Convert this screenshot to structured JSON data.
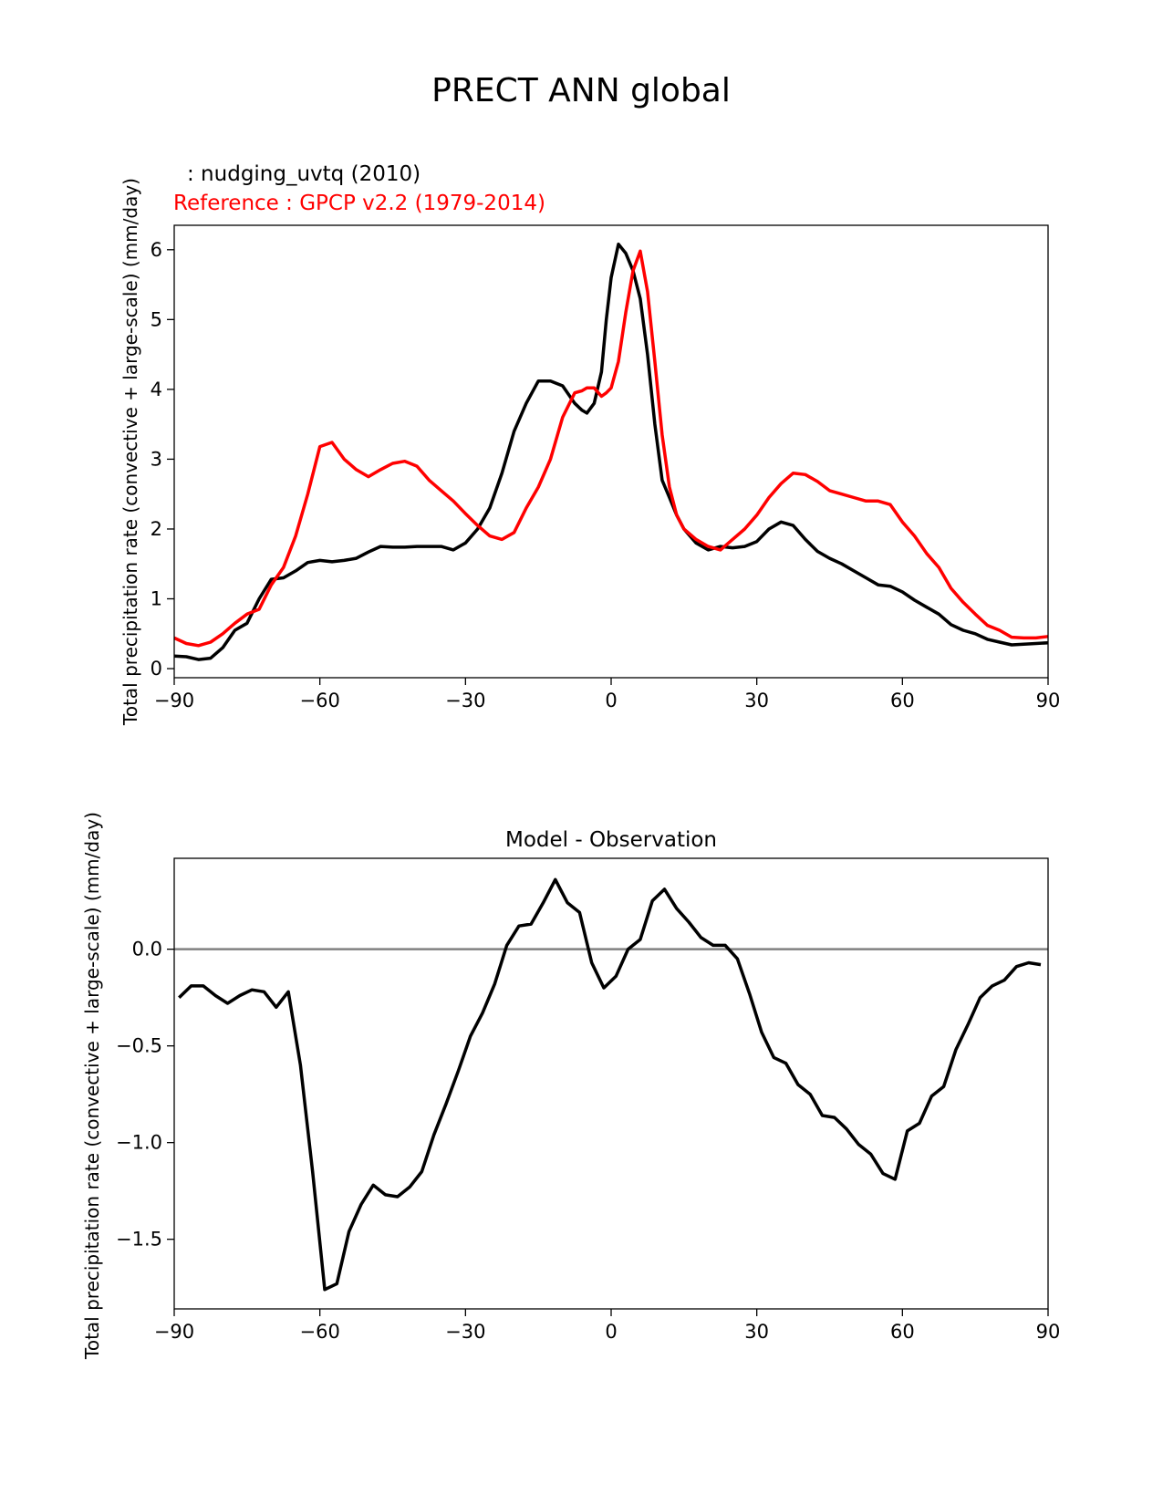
{
  "figure_title": "PRECT ANN global",
  "colors": {
    "model": "#000000",
    "reference": "#ff0000",
    "zero_line": "#808080"
  },
  "chart_data": [
    {
      "type": "line",
      "subtitle_model": " : nudging_uvtq (2010)",
      "subtitle_reference": "Reference : GPCP v2.2 (1979-2014)",
      "ylabel": "Total precipitation rate (convective + large-scale) (mm/day)",
      "xlabel": "",
      "xlim": [
        -90,
        90
      ],
      "ylim": [
        -0.13,
        6.35
      ],
      "xticks": [
        -90,
        -60,
        -30,
        0,
        30,
        60,
        90
      ],
      "xtick_labels": [
        "−90",
        "−60",
        "−30",
        "0",
        "30",
        "60",
        "90"
      ],
      "yticks": [
        0,
        1,
        2,
        3,
        4,
        5,
        6
      ],
      "ytick_labels": [
        "0",
        "1",
        "2",
        "3",
        "4",
        "5",
        "6"
      ],
      "series": [
        {
          "name": "nudging_uvtq (2010)",
          "color": "#000000",
          "x": [
            -90,
            -87.5,
            -85,
            -82.5,
            -80,
            -77.5,
            -75,
            -72.5,
            -70,
            -67.5,
            -65,
            -62.5,
            -60,
            -57.5,
            -55,
            -52.5,
            -50,
            -47.5,
            -45,
            -42.5,
            -40,
            -37.5,
            -35,
            -32.5,
            -30,
            -27.5,
            -25,
            -22.5,
            -20,
            -17.5,
            -15,
            -12.5,
            -10,
            -7.5,
            -6,
            -5,
            -3.5,
            -2,
            -1,
            0,
            1.5,
            3,
            4.5,
            6,
            7.5,
            9,
            10.5,
            12,
            13.5,
            15,
            17.5,
            20,
            22.5,
            25,
            27.5,
            30,
            32.5,
            35,
            37.5,
            40,
            42.5,
            45,
            47.5,
            50,
            52.5,
            55,
            57.5,
            60,
            62.5,
            65,
            67.5,
            70,
            72.5,
            75,
            77.5,
            80,
            82.5,
            85,
            87.5,
            90
          ],
          "values": [
            0.18,
            0.17,
            0.13,
            0.15,
            0.3,
            0.55,
            0.65,
            1.0,
            1.28,
            1.3,
            1.4,
            1.52,
            1.55,
            1.53,
            1.55,
            1.58,
            1.67,
            1.75,
            1.74,
            1.74,
            1.75,
            1.75,
            1.75,
            1.7,
            1.8,
            2.0,
            2.3,
            2.8,
            3.4,
            3.8,
            4.12,
            4.12,
            4.05,
            3.8,
            3.7,
            3.66,
            3.8,
            4.25,
            5.0,
            5.6,
            6.08,
            5.95,
            5.7,
            5.3,
            4.5,
            3.5,
            2.7,
            2.45,
            2.2,
            2.0,
            1.8,
            1.7,
            1.75,
            1.73,
            1.75,
            1.82,
            2.0,
            2.1,
            2.05,
            1.85,
            1.68,
            1.58,
            1.5,
            1.4,
            1.3,
            1.2,
            1.18,
            1.1,
            0.98,
            0.88,
            0.78,
            0.63,
            0.55,
            0.5,
            0.42,
            0.38,
            0.34,
            0.35,
            0.36,
            0.37
          ]
        },
        {
          "name": "GPCP v2.2 (1979-2014)",
          "color": "#ff0000",
          "x": [
            -90,
            -87.5,
            -85,
            -82.5,
            -80,
            -77.5,
            -75,
            -72.5,
            -70,
            -67.5,
            -65,
            -62.5,
            -60,
            -57.5,
            -55,
            -52.5,
            -50,
            -47.5,
            -45,
            -42.5,
            -40,
            -37.5,
            -35,
            -32.5,
            -30,
            -27.5,
            -25,
            -22.5,
            -20,
            -17.5,
            -15,
            -12.5,
            -10,
            -7.5,
            -6,
            -5,
            -3.5,
            -2,
            -1,
            0,
            1.5,
            3,
            4.5,
            6,
            7.5,
            9,
            10.5,
            12,
            13.5,
            15,
            17.5,
            20,
            22.5,
            25,
            27.5,
            30,
            32.5,
            35,
            37.5,
            40,
            42.5,
            45,
            47.5,
            50,
            52.5,
            55,
            57.5,
            60,
            62.5,
            65,
            67.5,
            70,
            72.5,
            75,
            77.5,
            80,
            82.5,
            85,
            87.5,
            90
          ],
          "values": [
            0.44,
            0.36,
            0.33,
            0.38,
            0.5,
            0.65,
            0.78,
            0.85,
            1.2,
            1.45,
            1.9,
            2.5,
            3.18,
            3.24,
            3.0,
            2.85,
            2.75,
            2.85,
            2.94,
            2.97,
            2.9,
            2.7,
            2.55,
            2.4,
            2.22,
            2.05,
            1.9,
            1.85,
            1.95,
            2.3,
            2.6,
            3.0,
            3.6,
            3.95,
            3.98,
            4.02,
            4.02,
            3.9,
            3.95,
            4.02,
            4.4,
            5.1,
            5.7,
            5.98,
            5.4,
            4.4,
            3.35,
            2.6,
            2.2,
            2.0,
            1.85,
            1.75,
            1.7,
            1.85,
            2.0,
            2.2,
            2.45,
            2.65,
            2.8,
            2.78,
            2.68,
            2.55,
            2.5,
            2.45,
            2.4,
            2.4,
            2.35,
            2.1,
            1.9,
            1.65,
            1.45,
            1.15,
            0.95,
            0.78,
            0.62,
            0.55,
            0.45,
            0.44,
            0.44,
            0.46
          ]
        }
      ]
    },
    {
      "type": "line",
      "title": "Model - Observation",
      "ylabel": "Total precipitation rate (convective + large-scale) (mm/day)",
      "xlabel": "",
      "xlim": [
        -90,
        90
      ],
      "ylim": [
        -1.86,
        0.47
      ],
      "xticks": [
        -90,
        -60,
        -30,
        0,
        30,
        60,
        90
      ],
      "xtick_labels": [
        "−90",
        "−60",
        "−30",
        "0",
        "30",
        "60",
        "90"
      ],
      "yticks": [
        0.0,
        -0.5,
        -1.0,
        -1.5
      ],
      "ytick_labels": [
        "0.0",
        "−0.5",
        "−1.0",
        "−1.5"
      ],
      "reference_line": 0,
      "series": [
        {
          "name": "Model - Observation",
          "color": "#000000",
          "x": [
            -89,
            -86.5,
            -84,
            -81.5,
            -79,
            -76.5,
            -74,
            -71.5,
            -69,
            -66.5,
            -64,
            -61.5,
            -59,
            -56.5,
            -54,
            -51.5,
            -49,
            -46.5,
            -44,
            -41.5,
            -39,
            -36.5,
            -34,
            -31.5,
            -29,
            -26.5,
            -24,
            -21.5,
            -19,
            -16.5,
            -14,
            -11.5,
            -9,
            -6.5,
            -4,
            -1.5,
            1,
            3.5,
            6,
            8.5,
            11,
            13.5,
            16,
            18.5,
            21,
            23.5,
            26,
            28.5,
            31,
            33.5,
            36,
            38.5,
            41,
            43.5,
            46,
            48.5,
            51,
            53.5,
            56,
            58.5,
            61,
            63.5,
            66,
            68.5,
            71,
            73.5,
            76,
            78.5,
            81,
            83.5,
            86,
            88.5
          ],
          "values": [
            -0.25,
            -0.19,
            -0.19,
            -0.24,
            -0.28,
            -0.24,
            -0.21,
            -0.22,
            -0.3,
            -0.22,
            -0.6,
            -1.15,
            -1.76,
            -1.73,
            -1.46,
            -1.32,
            -1.22,
            -1.27,
            -1.28,
            -1.23,
            -1.15,
            -0.96,
            -0.8,
            -0.63,
            -0.45,
            -0.33,
            -0.18,
            0.02,
            0.12,
            0.13,
            0.24,
            0.36,
            0.24,
            0.19,
            -0.07,
            -0.2,
            -0.14,
            0.0,
            0.05,
            0.25,
            0.31,
            0.21,
            0.14,
            0.06,
            0.02,
            0.02,
            -0.05,
            -0.23,
            -0.43,
            -0.56,
            -0.59,
            -0.7,
            -0.75,
            -0.86,
            -0.87,
            -0.93,
            -1.01,
            -1.06,
            -1.16,
            -1.19,
            -0.94,
            -0.9,
            -0.76,
            -0.71,
            -0.52,
            -0.39,
            -0.25,
            -0.19,
            -0.16,
            -0.09,
            -0.07,
            -0.08
          ]
        }
      ]
    }
  ]
}
